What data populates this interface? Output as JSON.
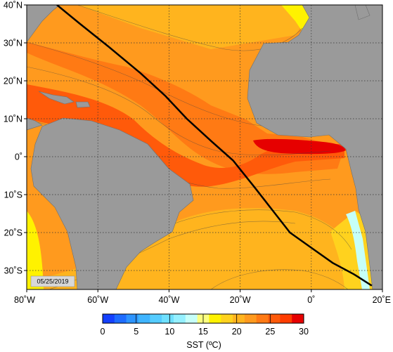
{
  "map": {
    "variable_label": "SST (ºC)",
    "date_stamp": "05/25/2019",
    "lon_range": [
      -80,
      20
    ],
    "lat_range": [
      -35,
      40
    ],
    "lon_ticks": [
      {
        "value": -80,
        "label": "80˚W"
      },
      {
        "value": -60,
        "label": "60˚W"
      },
      {
        "value": -40,
        "label": "40˚W"
      },
      {
        "value": -20,
        "label": "20˚W"
      },
      {
        "value": 0,
        "label": "0˚"
      },
      {
        "value": 20,
        "label": "20˚E"
      }
    ],
    "lat_ticks": [
      {
        "value": 40,
        "label": "40˚N"
      },
      {
        "value": 30,
        "label": "30˚N"
      },
      {
        "value": 20,
        "label": "20˚N"
      },
      {
        "value": 10,
        "label": "10˚N"
      },
      {
        "value": 0,
        "label": "0˚"
      },
      {
        "value": -10,
        "label": "10˚S"
      },
      {
        "value": -20,
        "label": "20˚S"
      },
      {
        "value": -30,
        "label": "30˚S"
      }
    ],
    "grid": "dotted",
    "land_color": "#9a9a9a",
    "track_color": "#000000",
    "ship_track": [
      [
        -71.5,
        40
      ],
      [
        -65,
        35
      ],
      [
        -57,
        29
      ],
      [
        -48,
        22
      ],
      [
        -41,
        16
      ],
      [
        -35,
        10
      ],
      [
        -28,
        4
      ],
      [
        -22,
        -1
      ],
      [
        -16,
        -8
      ],
      [
        -11,
        -14
      ],
      [
        -6,
        -20
      ],
      [
        0,
        -24
      ],
      [
        6,
        -28
      ],
      [
        12,
        -31
      ],
      [
        17,
        -34
      ]
    ],
    "colorbar": {
      "min": 0,
      "max": 30,
      "ticks": [
        {
          "value": 0,
          "label": "0"
        },
        {
          "value": 5,
          "label": "5"
        },
        {
          "value": 10,
          "label": "10"
        },
        {
          "value": 15,
          "label": "15"
        },
        {
          "value": 20,
          "label": "20"
        },
        {
          "value": 25,
          "label": "25"
        },
        {
          "value": 30,
          "label": "30"
        }
      ],
      "colors": [
        "#1440ff",
        "#1e6cff",
        "#2d94ff",
        "#3fb4ff",
        "#55ccff",
        "#6ee0ff",
        "#95f0ff",
        "#c6fff8",
        "#fbff80",
        "#fff200",
        "#ffd21e",
        "#ffb41e",
        "#ff9a1e",
        "#ff7a14",
        "#ff5a0a",
        "#ff3c00",
        "#e60000"
      ]
    }
  }
}
